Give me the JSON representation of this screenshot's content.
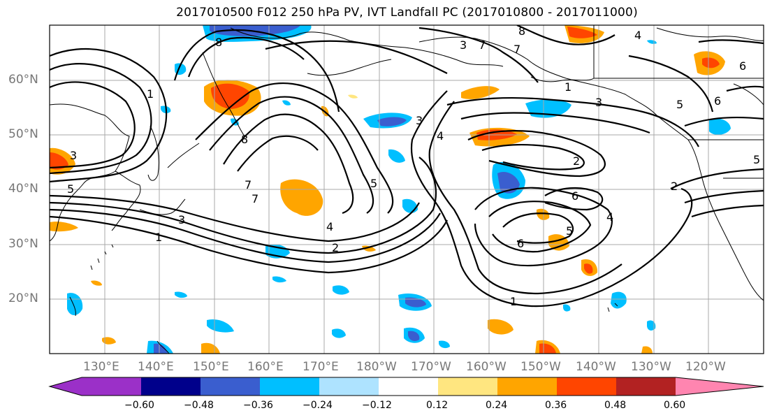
{
  "title": "2017010500 F012 250 hPa PV, IVT Landfall PC (2017010800 - 2017011000)",
  "lat_labels": [
    "60°N",
    "50°N",
    "40°N",
    "30°N",
    "20°N"
  ],
  "lon_labels": [
    "130°E",
    "140°E",
    "150°E",
    "160°E",
    "170°E",
    "180°W",
    "170°W",
    "160°W",
    "150°W",
    "140°W",
    "130°W",
    "120°W"
  ],
  "colorbar": {
    "ticks": [
      "−0.60",
      "−0.48",
      "−0.36",
      "−0.24",
      "−0.12",
      "0.12",
      "0.24",
      "0.36",
      "0.48",
      "0.60"
    ],
    "colors": [
      "#9b30c8",
      "#00008b",
      "#3a5ecf",
      "#00bfff",
      "#aee3ff",
      "#ffffff",
      "#ffe680",
      "#ffa500",
      "#ff4500",
      "#b22222",
      "#ff85b0"
    ]
  },
  "contour_labels": [
    "8",
    "7",
    "7",
    "5",
    "3",
    "1",
    "5",
    "3",
    "7",
    "2",
    "4",
    "3",
    "1",
    "1",
    "3",
    "2",
    "4",
    "5",
    "6",
    "6",
    "5",
    "6",
    "1",
    "2",
    "7",
    "4",
    "5",
    "3",
    "8",
    "6",
    "8",
    "4"
  ]
}
